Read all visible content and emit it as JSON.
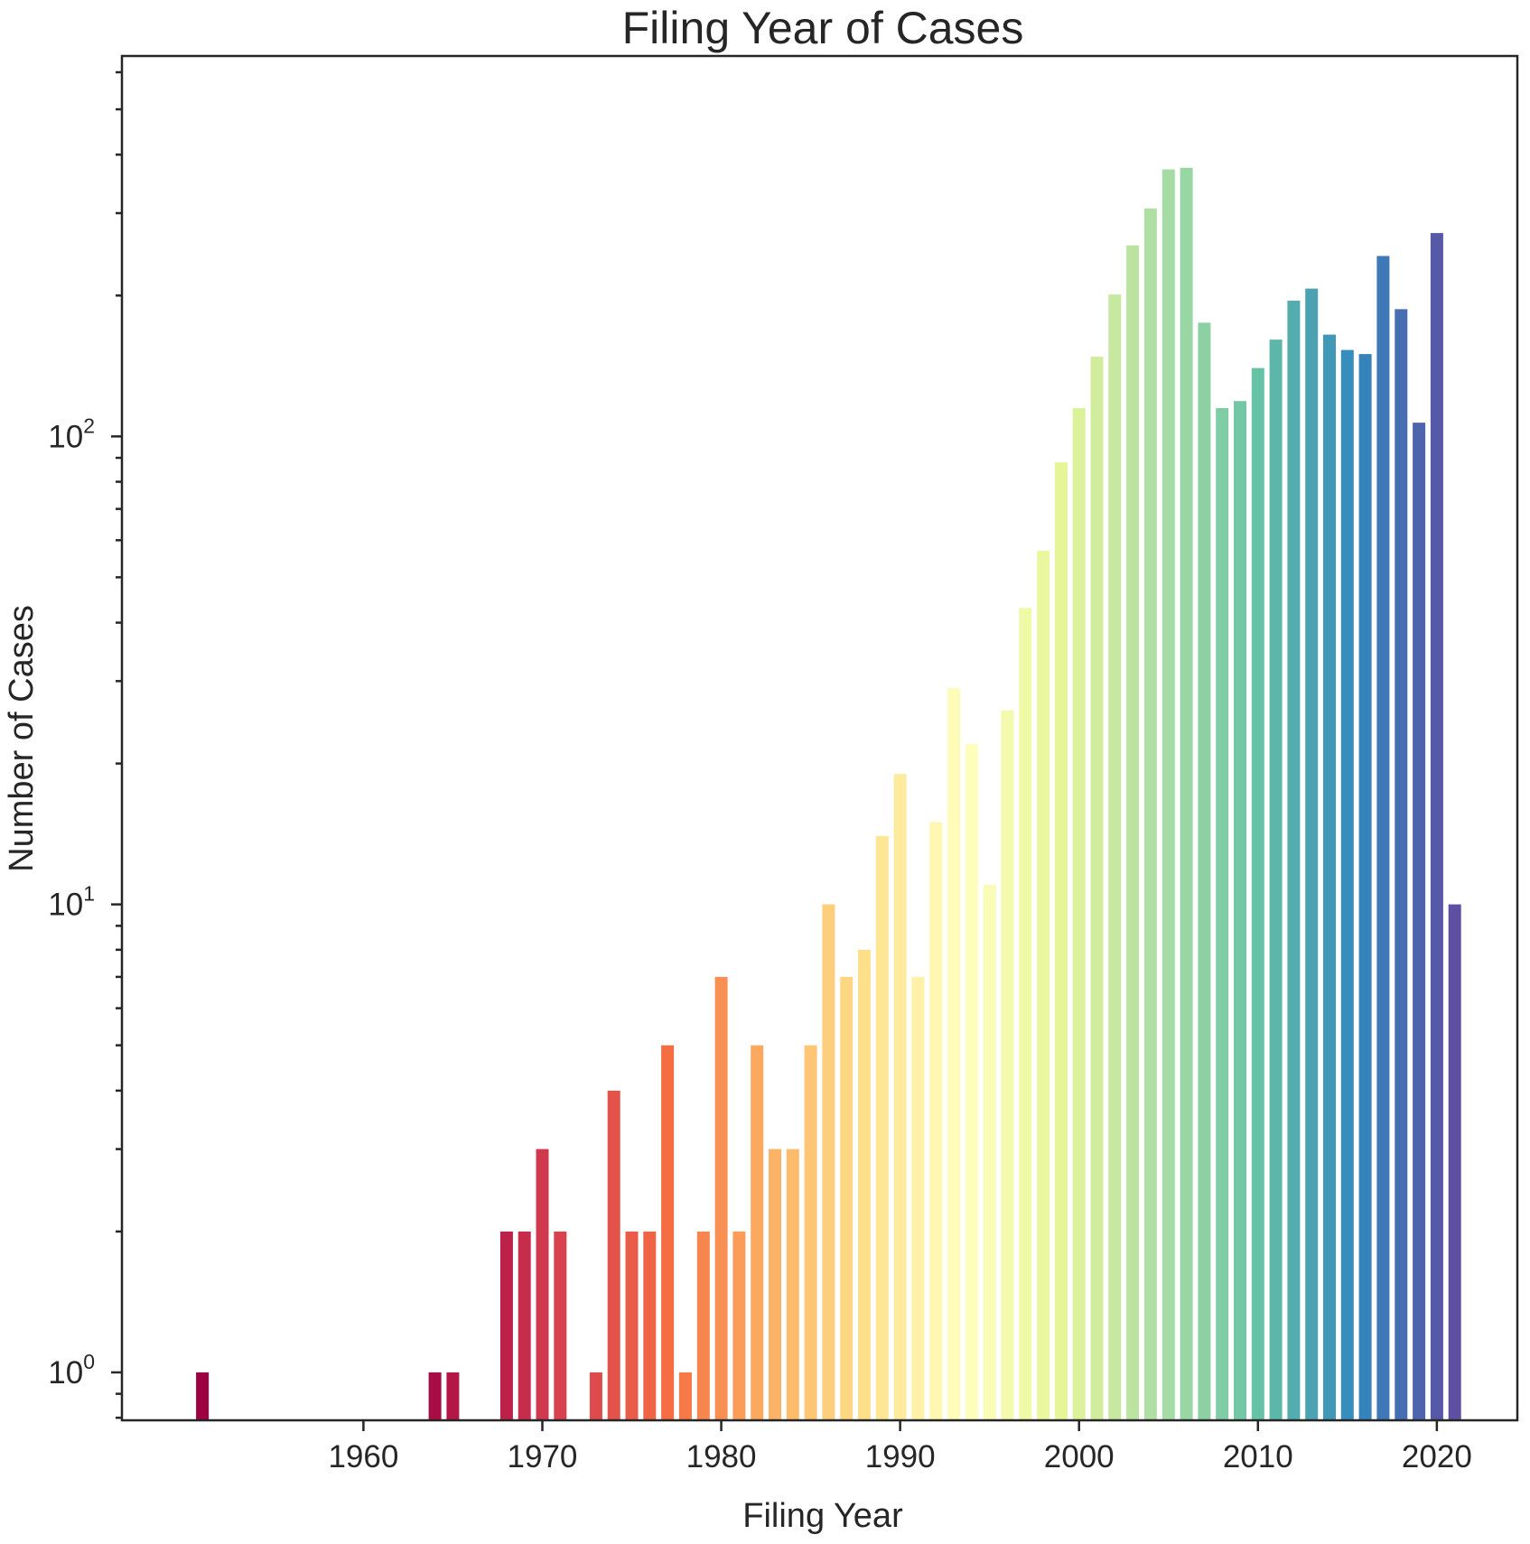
{
  "chart_data": {
    "type": "bar",
    "title": "Filing Year of Cases",
    "xlabel": "Filing Year",
    "ylabel": "Number of Cases",
    "yscale": "log",
    "ylim": [
      0.79,
      650
    ],
    "xlim": [
      1946.5,
      2024.5
    ],
    "x_ticks": [
      1960,
      1970,
      1980,
      1990,
      2000,
      2010,
      2020
    ],
    "y_ticks": [
      {
        "value": 1,
        "base": "10",
        "exp": "0"
      },
      {
        "value": 10,
        "base": "10",
        "exp": "1"
      },
      {
        "value": 100,
        "base": "10",
        "exp": "2"
      }
    ],
    "colormap": "Spectral",
    "grid": false,
    "legend": "none",
    "x": [
      1951,
      1964,
      1965,
      1968,
      1969,
      1970,
      1971,
      1973,
      1974,
      1975,
      1976,
      1977,
      1978,
      1979,
      1980,
      1981,
      1982,
      1983,
      1984,
      1985,
      1986,
      1987,
      1988,
      1989,
      1990,
      1991,
      1992,
      1993,
      1994,
      1995,
      1996,
      1997,
      1998,
      1999,
      2000,
      2001,
      2002,
      2003,
      2004,
      2005,
      2006,
      2007,
      2008,
      2009,
      2010,
      2011,
      2012,
      2013,
      2014,
      2015,
      2016,
      2017,
      2018,
      2019,
      2020,
      2021
    ],
    "values": [
      1,
      1,
      1,
      2,
      2,
      3,
      2,
      1,
      4,
      2,
      2,
      5,
      1,
      2,
      7,
      2,
      5,
      3,
      3,
      5,
      10,
      7,
      8,
      14,
      19,
      7,
      15,
      29,
      22,
      11,
      26,
      43,
      57,
      88,
      115,
      148,
      201,
      256,
      307,
      372,
      375,
      175,
      115,
      119,
      140,
      161,
      195,
      207,
      165,
      153,
      150,
      243,
      187,
      107,
      272,
      10
    ]
  }
}
